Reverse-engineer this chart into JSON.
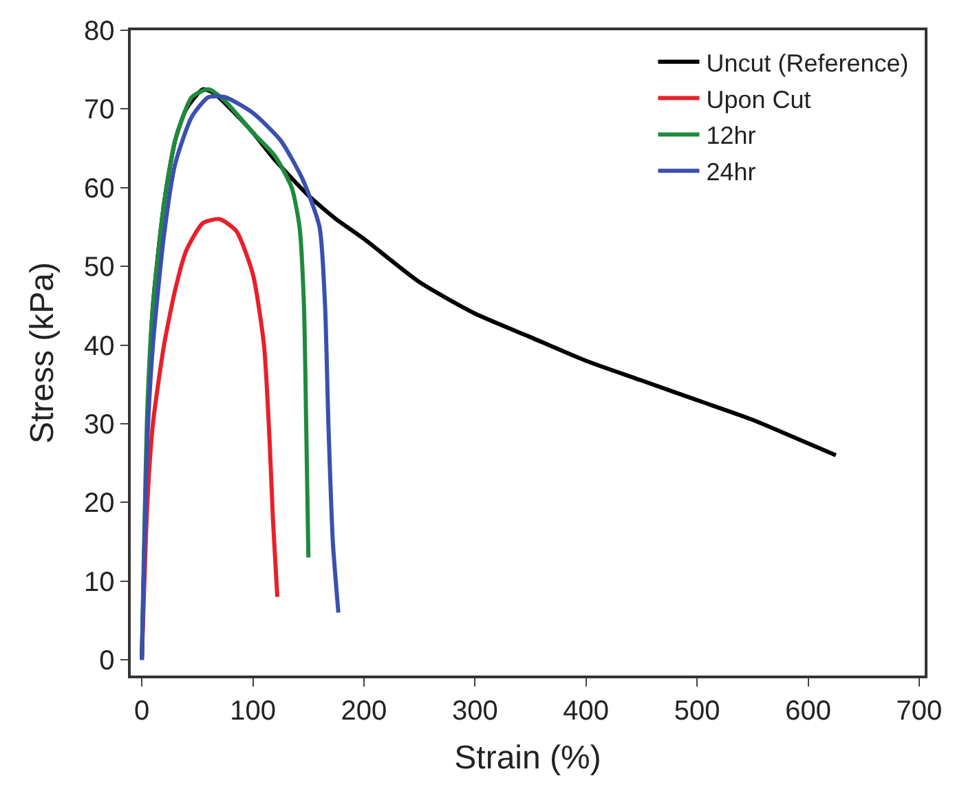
{
  "chart_data": {
    "type": "line",
    "xlabel": "Strain (%)",
    "ylabel": "Stress (kPa)",
    "xlim": [
      -10,
      705
    ],
    "ylim": [
      -2,
      80
    ],
    "xticks": [
      0,
      100,
      200,
      300,
      400,
      500,
      600,
      700
    ],
    "yticks": [
      0,
      10,
      20,
      30,
      40,
      50,
      60,
      70,
      80
    ],
    "legend": "top right",
    "marker": "none",
    "line_style": "solid",
    "series": [
      {
        "name": "Uncut (Reference)",
        "color": "#000000",
        "x": [
          0,
          5,
          10,
          20,
          30,
          40,
          55,
          65,
          80,
          100,
          120,
          150,
          175,
          200,
          250,
          300,
          350,
          400,
          450,
          500,
          550,
          600,
          625
        ],
        "values": [
          0,
          30,
          45,
          58,
          66,
          70,
          72.5,
          72,
          70,
          67,
          63.5,
          59,
          56,
          53.5,
          48,
          44,
          41,
          38,
          35.5,
          33,
          30.5,
          27.5,
          26
        ]
      },
      {
        "name": "Upon Cut",
        "color": "#e8202a",
        "x": [
          0,
          5,
          10,
          20,
          30,
          40,
          55,
          70,
          85,
          100,
          110,
          115,
          118,
          122
        ],
        "values": [
          0,
          20,
          30,
          40,
          47,
          52,
          55.5,
          56,
          54.5,
          49,
          40,
          28,
          18,
          8
        ]
      },
      {
        "name": "12hr",
        "color": "#1f8a3c",
        "x": [
          0,
          5,
          10,
          20,
          30,
          45,
          60,
          75,
          100,
          120,
          135,
          142,
          146,
          148,
          150
        ],
        "values": [
          0,
          32,
          45,
          58,
          66,
          71.5,
          72.5,
          71,
          67,
          64,
          60,
          55,
          45,
          30,
          13
        ]
      },
      {
        "name": "24hr",
        "color": "#3a4fb0",
        "x": [
          0,
          5,
          10,
          20,
          30,
          45,
          60,
          75,
          100,
          125,
          145,
          160,
          165,
          168,
          172,
          177
        ],
        "values": [
          0,
          28,
          40,
          54,
          63,
          69,
          71.5,
          71.5,
          69.5,
          66,
          61,
          55,
          45,
          30,
          15,
          6
        ]
      }
    ]
  }
}
